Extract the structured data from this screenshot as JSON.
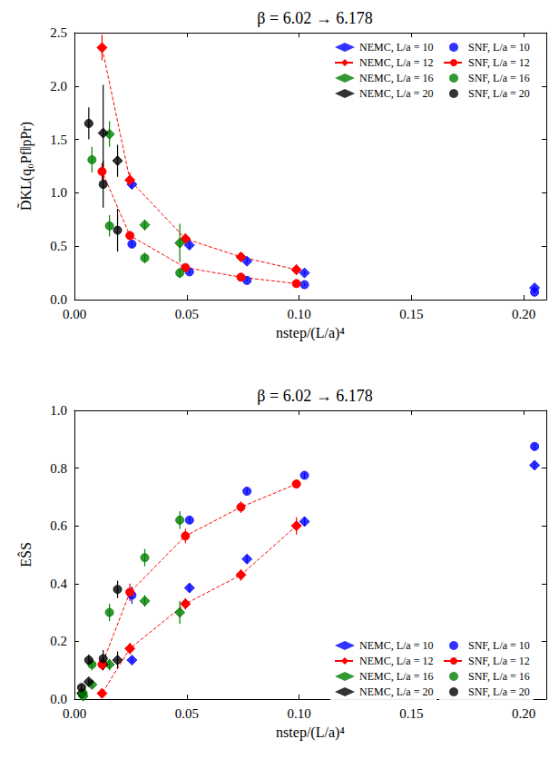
{
  "chart_data": [
    {
      "type": "scatter",
      "title": "β = 6.02 → 6.178",
      "x_label": "nstep/(L/a)⁴",
      "y_label": "D̃KL(q₀Pf‖pPr)",
      "xlim": [
        0,
        0.21
      ],
      "xticks": [
        {
          "value": 0,
          "label": "0.00"
        },
        {
          "value": 0.05,
          "label": "0.05"
        },
        {
          "value": 0.1,
          "label": "0.10"
        },
        {
          "value": 0.15,
          "label": "0.15"
        },
        {
          "value": 0.2,
          "label": "0.20"
        }
      ],
      "ylim": [
        0,
        2.5
      ],
      "yticks": [
        {
          "value": 0,
          "label": "0.0"
        },
        {
          "value": 0.5,
          "label": "0.5"
        },
        {
          "value": 1,
          "label": "1.0"
        },
        {
          "value": 1.5,
          "label": "1.5"
        },
        {
          "value": 2,
          "label": "2.0"
        },
        {
          "value": 2.5,
          "label": "2.5"
        }
      ],
      "grid": false,
      "legend": "upper right",
      "series": [
        {
          "name": "NEMC, L/a = 10",
          "color": "#0000ff",
          "marker": "diamond",
          "line_style": "none",
          "x": [
            0.2048,
            0.1024,
            0.0768,
            0.0512,
            0.0256
          ],
          "values": [
            0.11,
            0.25,
            0.36,
            0.51,
            1.08
          ],
          "errors": [
            0.02,
            0.02,
            0.02,
            0.03,
            0.04
          ]
        },
        {
          "name": "NEMC, L/a = 12",
          "color": "#ff0000",
          "marker": "diamond",
          "line_style": "dashed",
          "x": [
            0.0988,
            0.0741,
            0.0494,
            0.0247,
            0.0123
          ],
          "values": [
            0.28,
            0.4,
            0.57,
            1.12,
            2.36
          ],
          "errors": [
            0.05,
            0.04,
            0.05,
            0.07,
            0.12
          ]
        },
        {
          "name": "NEMC, L/a = 16",
          "color": "#008000",
          "marker": "diamond",
          "line_style": "none",
          "x": [
            0.0469,
            0.0313,
            0.0156
          ],
          "values": [
            0.53,
            0.7,
            1.55
          ],
          "errors": [
            0.18,
            0.05,
            0.12
          ]
        },
        {
          "name": "NEMC, L/a = 20",
          "color": "#000000",
          "marker": "diamond",
          "line_style": "none",
          "x": [
            0.0192,
            0.0128
          ],
          "values": [
            1.3,
            1.56
          ],
          "errors": [
            0.15,
            0.45
          ]
        },
        {
          "name": "SNF, L/a = 10",
          "color": "#0000ff",
          "marker": "circle",
          "line_style": "none",
          "x": [
            0.2048,
            0.1024,
            0.0768,
            0.0512,
            0.0256
          ],
          "values": [
            0.07,
            0.14,
            0.18,
            0.26,
            0.52
          ],
          "errors": [
            0.01,
            0.01,
            0.01,
            0.02,
            0.03
          ]
        },
        {
          "name": "SNF, L/a = 12",
          "color": "#ff0000",
          "marker": "circle",
          "line_style": "dashed",
          "x": [
            0.0988,
            0.0741,
            0.0494,
            0.0247,
            0.0123
          ],
          "values": [
            0.15,
            0.21,
            0.3,
            0.6,
            1.2
          ],
          "errors": [
            0.02,
            0.02,
            0.03,
            0.04,
            0.08
          ]
        },
        {
          "name": "SNF, L/a = 16",
          "color": "#008000",
          "marker": "circle",
          "line_style": "none",
          "x": [
            0.0469,
            0.0313,
            0.0156,
            0.0078
          ],
          "values": [
            0.25,
            0.39,
            0.69,
            1.31
          ],
          "errors": [
            0.05,
            0.05,
            0.1,
            0.12
          ]
        },
        {
          "name": "SNF, L/a = 20",
          "color": "#000000",
          "marker": "circle",
          "line_style": "none",
          "x": [
            0.0192,
            0.0128,
            0.0064
          ],
          "values": [
            0.65,
            1.08,
            1.65
          ],
          "errors": [
            0.2,
            0.22,
            0.15
          ]
        }
      ]
    },
    {
      "type": "scatter",
      "title": "β = 6.02 → 6.178",
      "x_label": "nstep/(L/a)⁴",
      "y_label": "EŜS",
      "xlim": [
        0,
        0.21
      ],
      "xticks": [
        {
          "value": 0,
          "label": "0.00"
        },
        {
          "value": 0.05,
          "label": "0.05"
        },
        {
          "value": 0.1,
          "label": "0.10"
        },
        {
          "value": 0.15,
          "label": "0.15"
        },
        {
          "value": 0.2,
          "label": "0.20"
        }
      ],
      "ylim": [
        0,
        1
      ],
      "yticks": [
        {
          "value": 0,
          "label": "0.0"
        },
        {
          "value": 0.2,
          "label": "0.2"
        },
        {
          "value": 0.4,
          "label": "0.4"
        },
        {
          "value": 0.6,
          "label": "0.6"
        },
        {
          "value": 0.8,
          "label": "0.8"
        },
        {
          "value": 1,
          "label": "1.0"
        }
      ],
      "grid": false,
      "legend": "lower right",
      "series": [
        {
          "name": "NEMC, L/a = 10",
          "color": "#0000ff",
          "marker": "diamond",
          "line_style": "none",
          "x": [
            0.2048,
            0.1024,
            0.0768,
            0.0512,
            0.0256
          ],
          "values": [
            0.81,
            0.615,
            0.485,
            0.385,
            0.135
          ],
          "errors": [
            0.01,
            0.015,
            0.015,
            0.015,
            0.01
          ]
        },
        {
          "name": "NEMC, L/a = 12",
          "color": "#ff0000",
          "marker": "diamond",
          "line_style": "dashed",
          "x": [
            0.0988,
            0.0741,
            0.0494,
            0.0247,
            0.0123
          ],
          "values": [
            0.6,
            0.43,
            0.33,
            0.175,
            0.02
          ],
          "errors": [
            0.03,
            0.02,
            0.02,
            0.02,
            0.01
          ]
        },
        {
          "name": "NEMC, L/a = 16",
          "color": "#008000",
          "marker": "diamond",
          "line_style": "none",
          "x": [
            0.0469,
            0.0313,
            0.0156,
            0.0078,
            0.0039
          ],
          "values": [
            0.3,
            0.34,
            0.12,
            0.05,
            0.01
          ],
          "errors": [
            0.04,
            0.02,
            0.02,
            0.01,
            0.005
          ]
        },
        {
          "name": "NEMC, L/a = 20",
          "color": "#000000",
          "marker": "diamond",
          "line_style": "none",
          "x": [
            0.0192,
            0.0128,
            0.0064,
            0.0032
          ],
          "values": [
            0.135,
            0.12,
            0.06,
            0.02
          ],
          "errors": [
            0.03,
            0.02,
            0.01,
            0.005
          ]
        },
        {
          "name": "SNF, L/a = 10",
          "color": "#0000ff",
          "marker": "circle",
          "line_style": "none",
          "x": [
            0.2048,
            0.1024,
            0.0768,
            0.0512,
            0.0256
          ],
          "values": [
            0.875,
            0.775,
            0.72,
            0.62,
            0.36
          ],
          "errors": [
            0.01,
            0.01,
            0.01,
            0.01,
            0.03
          ]
        },
        {
          "name": "SNF, L/a = 12",
          "color": "#ff0000",
          "marker": "circle",
          "line_style": "dashed",
          "x": [
            0.0988,
            0.0741,
            0.0494,
            0.0247,
            0.0123
          ],
          "values": [
            0.745,
            0.665,
            0.565,
            0.37,
            0.12
          ],
          "errors": [
            0.015,
            0.02,
            0.025,
            0.03,
            0.02
          ]
        },
        {
          "name": "SNF, L/a = 16",
          "color": "#008000",
          "marker": "circle",
          "line_style": "none",
          "x": [
            0.0469,
            0.0313,
            0.0156,
            0.0078,
            0.0039
          ],
          "values": [
            0.62,
            0.49,
            0.3,
            0.12,
            0.02
          ],
          "errors": [
            0.03,
            0.03,
            0.03,
            0.02,
            0.005
          ]
        },
        {
          "name": "SNF, L/a = 20",
          "color": "#000000",
          "marker": "circle",
          "line_style": "none",
          "x": [
            0.0192,
            0.0128,
            0.0064,
            0.0032
          ],
          "values": [
            0.38,
            0.14,
            0.135,
            0.04
          ],
          "errors": [
            0.03,
            0.03,
            0.02,
            0.01
          ]
        }
      ]
    }
  ]
}
